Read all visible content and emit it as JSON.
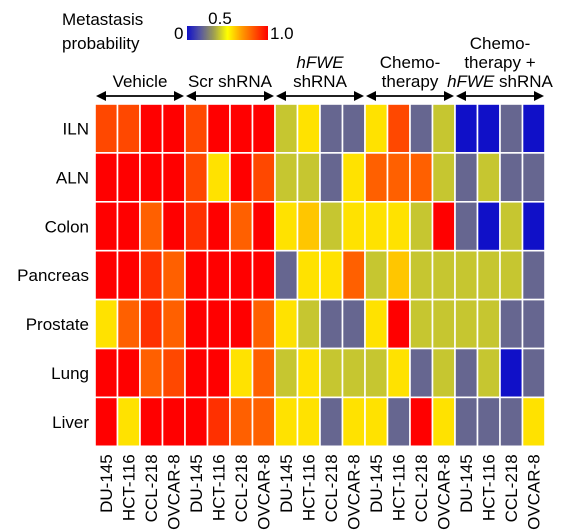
{
  "chart_data": {
    "type": "heatmap",
    "colorbar": {
      "title_line1": "Metastasis",
      "title_line2": "probability",
      "min_label": "0",
      "mid_label": "0.5",
      "max_label": "1.0",
      "stops": [
        "#1010c8",
        "#5858a0",
        "#a0a050",
        "#ffff00",
        "#ffa000",
        "#ff5000",
        "#ff0000"
      ]
    },
    "rows": [
      "ILN",
      "ALN",
      "Colon",
      "Pancreas",
      "Prostate",
      "Lung",
      "Liver"
    ],
    "columns": [
      "DU-145",
      "HCT-116",
      "CCL-218",
      "OVCAR-8",
      "DU-145",
      "HCT-116",
      "CCL-218",
      "OVCAR-8",
      "DU-145",
      "HCT-116",
      "CCL-218",
      "OVCAR-8",
      "DU-145",
      "HCT-116",
      "CCL-218",
      "OVCAR-8",
      "DU-145",
      "HCT-116",
      "CCL-218",
      "OVCAR-8"
    ],
    "groups": [
      {
        "lines": [
          "Vehicle"
        ],
        "italic": [
          false
        ]
      },
      {
        "lines": [
          "Scr shRNA"
        ],
        "italic": [
          false
        ]
      },
      {
        "lines": [
          "hFWE",
          "shRNA"
        ],
        "italic": [
          true,
          false
        ]
      },
      {
        "lines": [
          "Chemo-",
          "therapy"
        ],
        "italic": [
          false,
          false
        ]
      },
      {
        "lines": [
          "Chemo-",
          "therapy +"
        ],
        "italic": [
          false,
          false
        ],
        "tail_italic": "hFWE",
        "tail_plain": " shRNA"
      }
    ],
    "values": [
      [
        0.85,
        0.85,
        1.0,
        1.0,
        0.85,
        1.0,
        1.0,
        1.0,
        0.4,
        0.55,
        0.2,
        0.2,
        0.55,
        0.85,
        0.2,
        0.4,
        0.0,
        0.0,
        0.2,
        0.0
      ],
      [
        1.0,
        1.0,
        1.0,
        1.0,
        0.85,
        0.55,
        1.0,
        0.85,
        0.4,
        0.4,
        0.2,
        0.55,
        0.8,
        0.8,
        0.8,
        0.4,
        0.2,
        0.4,
        0.2,
        0.2
      ],
      [
        1.0,
        1.0,
        0.8,
        1.0,
        0.9,
        1.0,
        0.8,
        1.0,
        0.55,
        0.6,
        0.4,
        0.55,
        0.55,
        0.55,
        0.4,
        1.0,
        0.2,
        0.0,
        0.4,
        0.0
      ],
      [
        1.0,
        1.0,
        0.9,
        0.8,
        1.0,
        1.0,
        1.0,
        1.0,
        0.2,
        0.55,
        0.55,
        0.8,
        0.4,
        0.6,
        0.4,
        0.4,
        0.4,
        0.4,
        0.4,
        0.2
      ],
      [
        0.55,
        0.8,
        0.9,
        0.8,
        1.0,
        1.0,
        1.0,
        0.8,
        0.55,
        0.4,
        0.2,
        0.2,
        0.55,
        1.0,
        0.4,
        0.4,
        0.4,
        0.4,
        0.2,
        0.2
      ],
      [
        1.0,
        1.0,
        0.8,
        0.85,
        1.0,
        1.0,
        0.55,
        0.8,
        0.4,
        0.55,
        0.4,
        0.4,
        0.4,
        0.55,
        0.2,
        0.4,
        0.2,
        0.4,
        0.0,
        0.2
      ],
      [
        1.0,
        0.55,
        1.0,
        1.0,
        1.0,
        0.9,
        0.8,
        0.8,
        0.55,
        0.55,
        0.2,
        0.55,
        0.55,
        0.2,
        1.0,
        0.55,
        0.2,
        0.2,
        0.2,
        0.55
      ]
    ],
    "xlabel": "",
    "ylabel": ""
  }
}
